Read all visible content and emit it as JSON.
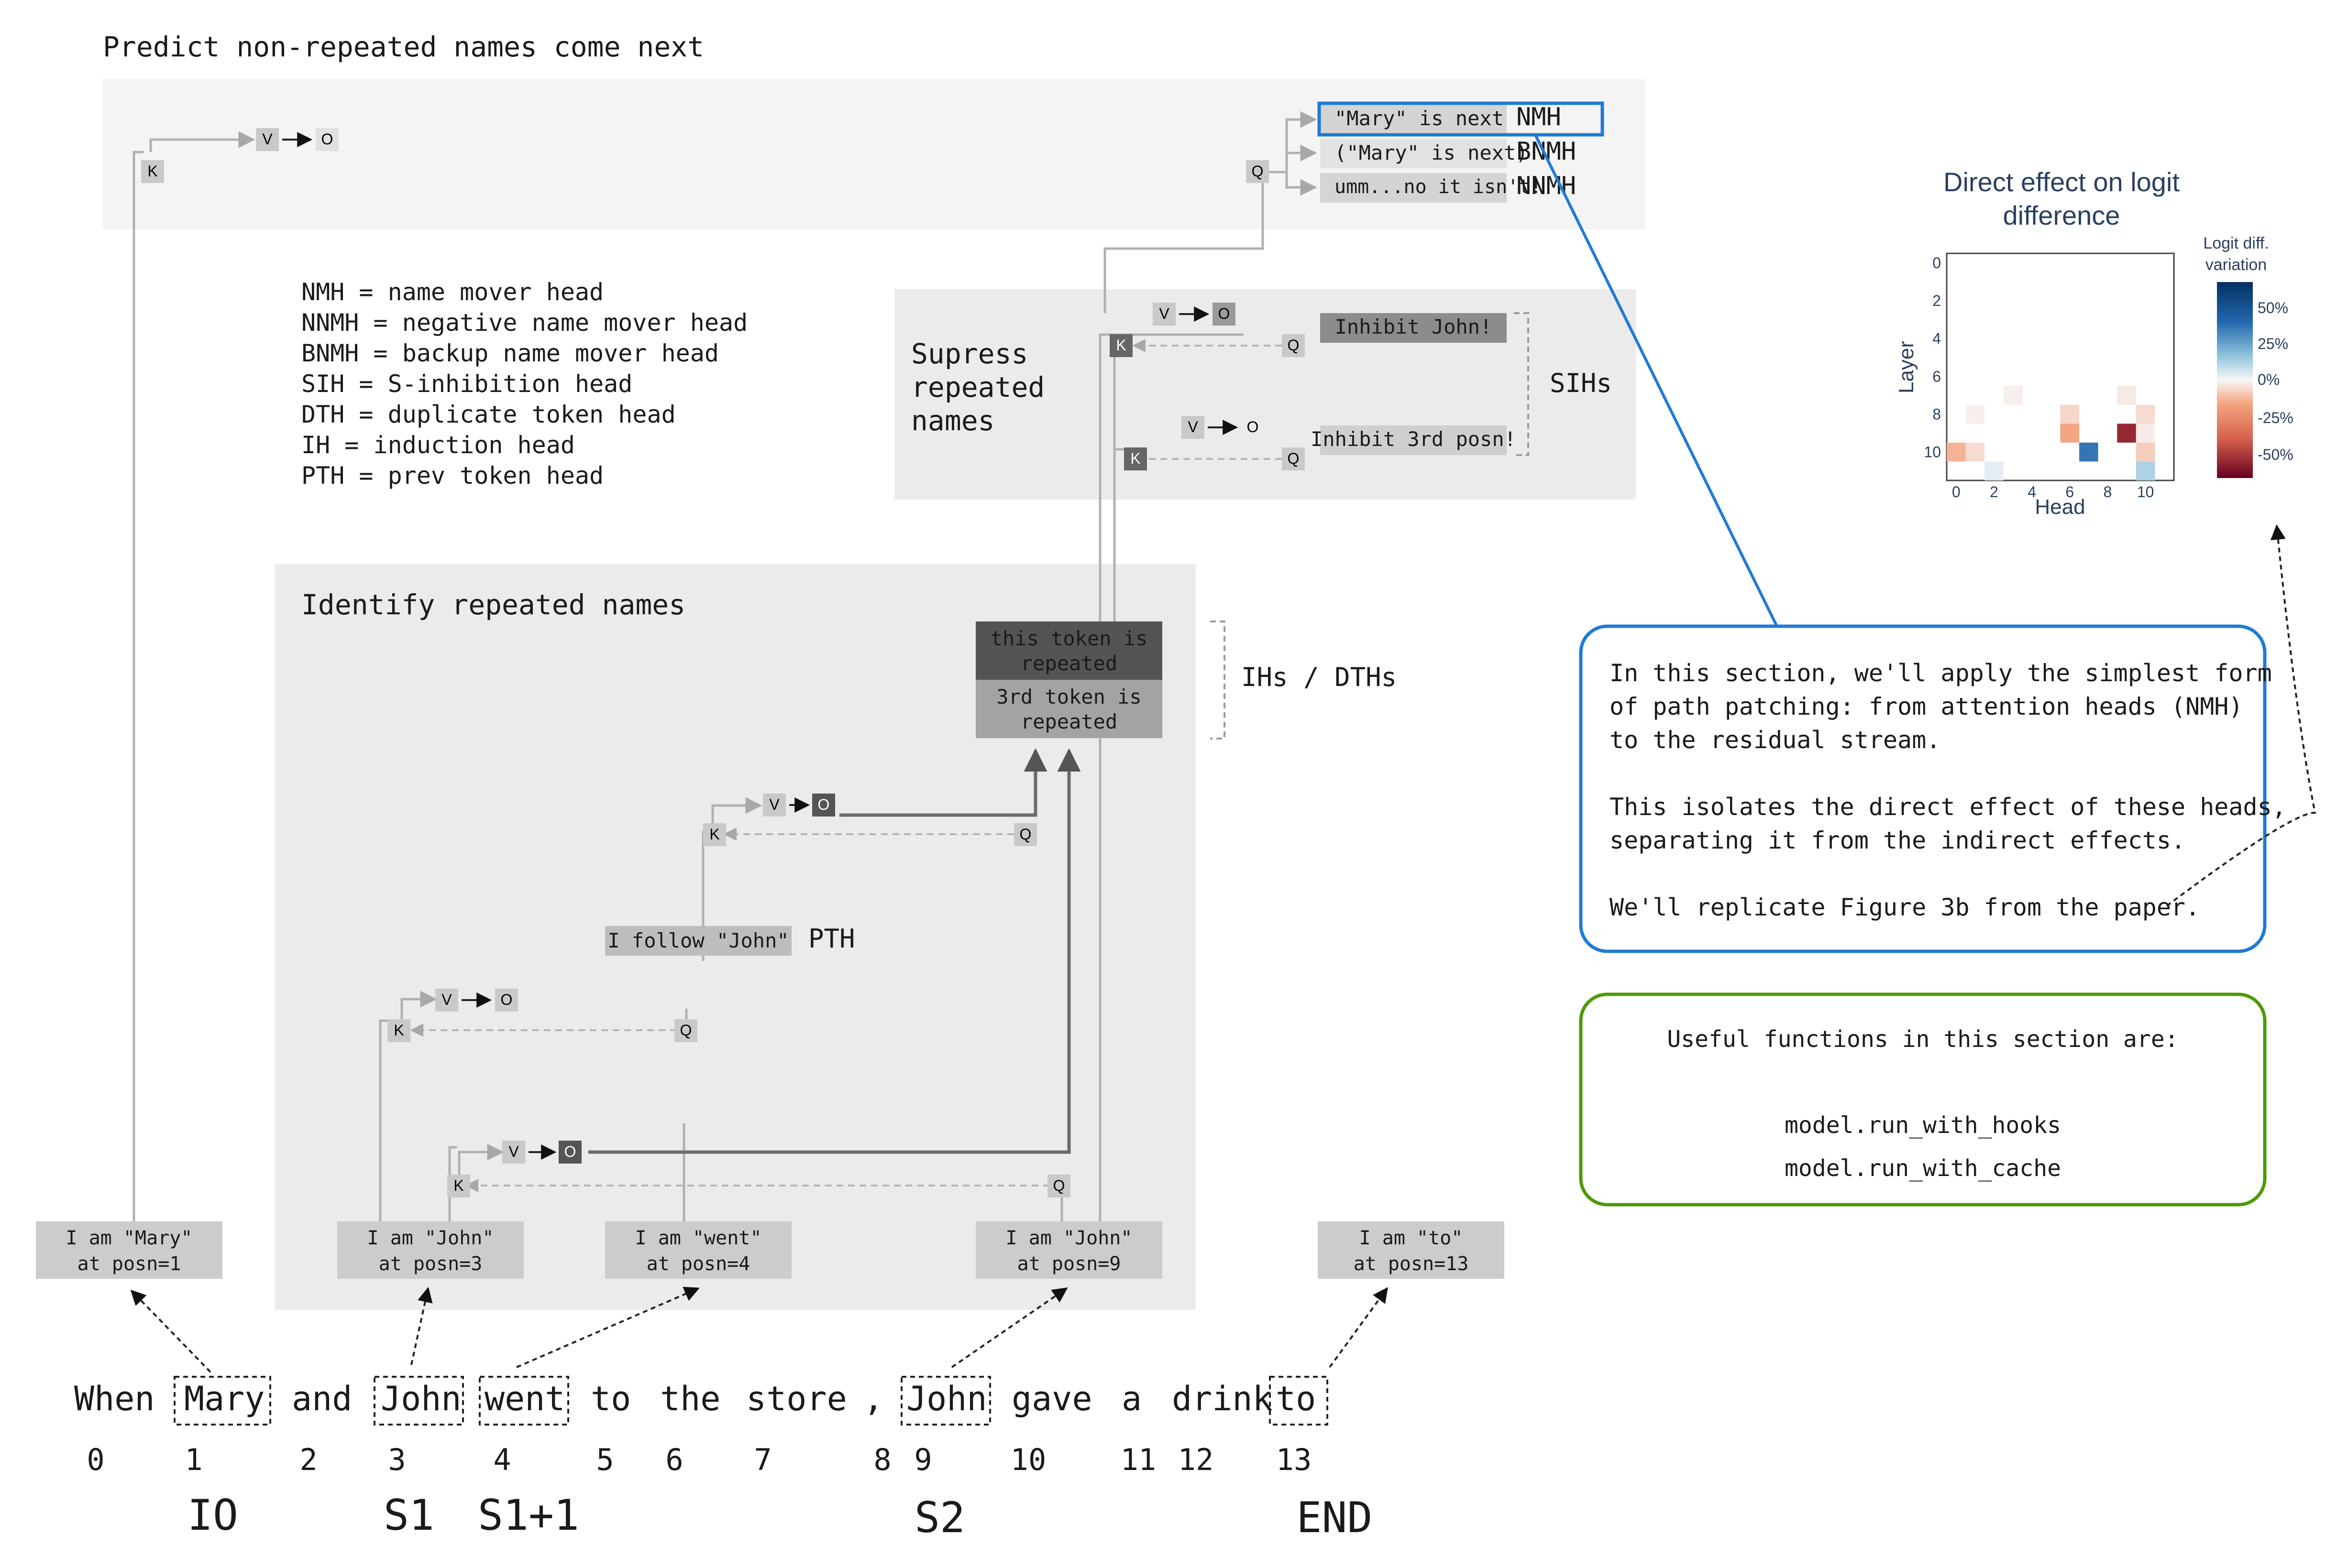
{
  "headings": {
    "predict": "Predict non-repeated names come next",
    "suppress": [
      "Supress",
      "repeated",
      "names"
    ],
    "identify": "Identify repeated names"
  },
  "glossary": [
    "NMH = name mover head",
    "NNMH = negative name mover head",
    "BNMH = backup name mover head",
    "SIH = S-inhibition head",
    "DTH = duplicate token head",
    "IH = induction head",
    "PTH = prev token head"
  ],
  "qkv": {
    "k": "K",
    "q": "Q",
    "v": "V",
    "o": "O"
  },
  "outputs": [
    {
      "text": "\"Mary\" is next",
      "label": "NMH"
    },
    {
      "text": "(\"Mary\" is next)",
      "label": "BNMH"
    },
    {
      "text": "umm...no it isn't!",
      "label": "NNMH"
    }
  ],
  "inhibit": [
    "Inhibit John!",
    "Inhibit 3rd posn!"
  ],
  "sih_label": "SIHs",
  "repeated": [
    "this token is",
    "repeated",
    "3rd token is",
    "repeated"
  ],
  "ih_label": "IHs / DTHs",
  "pth": {
    "text": "I follow \"John\"",
    "label": "PTH"
  },
  "token_boxes": [
    [
      "I am \"Mary\"",
      "at posn=1"
    ],
    [
      "I am \"John\"",
      "at posn=3"
    ],
    [
      "I am \"went\"",
      "at posn=4"
    ],
    [
      "I am \"John\"",
      "at posn=9"
    ],
    [
      "I am \"to\"",
      "at posn=13"
    ]
  ],
  "sentence": [
    "When",
    "Mary",
    "and",
    "John",
    "went",
    "to",
    "the",
    "store",
    ",",
    "John",
    "gave",
    "a",
    "drink",
    "to"
  ],
  "positions": [
    "0",
    "1",
    "2",
    "3",
    "4",
    "5",
    "6",
    "7",
    "8",
    "9",
    "10",
    "11",
    "12",
    "13"
  ],
  "roles": [
    "IO",
    "S1",
    "S1+1",
    "S2",
    "END"
  ],
  "callout": {
    "lines": [
      "In this section, we'll apply the simplest form",
      "of path patching: from attention heads (NMH)",
      "to the residual stream.",
      "This isolates the direct effect of these heads,",
      "separating it from the indirect effects.",
      "We'll replicate Figure 3b from the paper."
    ]
  },
  "functions": {
    "title": "Useful functions in this section are:",
    "items": [
      "model.run_with_hooks",
      "model.run_with_cache"
    ]
  },
  "colors": {
    "blue": "#1f7ad6",
    "green": "#4e9a06"
  },
  "heatmap": {
    "title": [
      "Direct effect on logit",
      "difference"
    ],
    "xlabel": "Head",
    "ylabel": "Layer",
    "xticks": [
      "0",
      "2",
      "4",
      "6",
      "8",
      "10"
    ],
    "yticks": [
      "0",
      "2",
      "4",
      "6",
      "8",
      "10"
    ],
    "colorbar_title": [
      "Logit diff.",
      "variation"
    ],
    "colorbar_ticks": [
      "50%",
      "25%",
      "0%",
      "-25%",
      "-50%"
    ]
  },
  "chart_data": {
    "type": "heatmap",
    "title": "Direct effect on logit difference",
    "xlabel": "Head",
    "ylabel": "Layer",
    "x_range": [
      0,
      11
    ],
    "y_range": [
      0,
      11
    ],
    "colorbar": "Logit diff. variation",
    "colorbar_range": [
      -0.6,
      0.6
    ],
    "cells": [
      {
        "layer": 7,
        "head": 3,
        "value": -0.03
      },
      {
        "layer": 7,
        "head": 9,
        "value": -0.05
      },
      {
        "layer": 8,
        "head": 1,
        "value": -0.03
      },
      {
        "layer": 8,
        "head": 6,
        "value": -0.12
      },
      {
        "layer": 8,
        "head": 10,
        "value": -0.1
      },
      {
        "layer": 9,
        "head": 6,
        "value": -0.3
      },
      {
        "layer": 9,
        "head": 9,
        "value": -0.55
      },
      {
        "layer": 9,
        "head": 10,
        "value": -0.04
      },
      {
        "layer": 10,
        "head": 0,
        "value": -0.25
      },
      {
        "layer": 10,
        "head": 1,
        "value": -0.1
      },
      {
        "layer": 10,
        "head": 7,
        "value": 0.55
      },
      {
        "layer": 10,
        "head": 10,
        "value": -0.15
      },
      {
        "layer": 11,
        "head": 2,
        "value": 0.06
      },
      {
        "layer": 11,
        "head": 10,
        "value": 0.22
      }
    ]
  }
}
